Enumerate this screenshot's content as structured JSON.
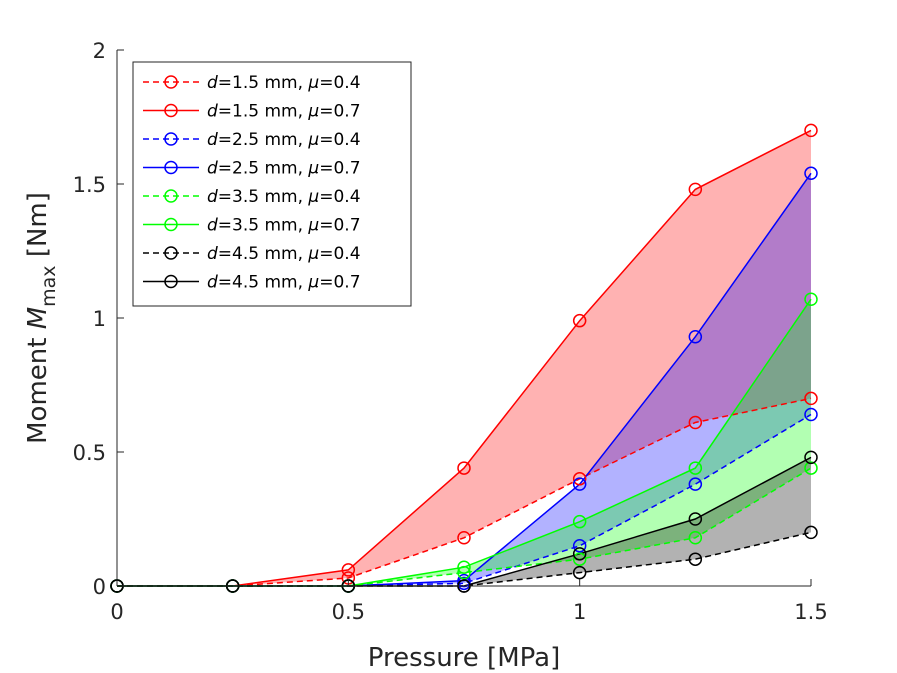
{
  "chart_data": {
    "type": "line",
    "title": "",
    "xlabel": "Pressure [MPa]",
    "ylabel_prefix": "Moment ",
    "ylabel_symbol": "M",
    "ylabel_subscript": "max",
    "ylabel_unit": "[Nm]",
    "x": [
      0,
      0.25,
      0.5,
      0.75,
      1,
      1.25,
      1.5
    ],
    "xlim": [
      0,
      1.5
    ],
    "ylim": [
      0,
      2
    ],
    "xticks": [
      0,
      0.5,
      1,
      1.5
    ],
    "xtick_labels": [
      "0",
      "0.5",
      "1",
      "1.5"
    ],
    "yticks": [
      0,
      0.5,
      1,
      1.5,
      2
    ],
    "ytick_labels": [
      "0",
      "0.5",
      "1",
      "1.5",
      "2"
    ],
    "grid": false,
    "legend_position": "top-left",
    "series": [
      {
        "d_label": "d",
        "rest_label": "=1.5 mm, ",
        "mu_label": "μ",
        "mu_value": "=0.4",
        "color": "#ff0000",
        "style": "dashed",
        "values": [
          0,
          0,
          0.03,
          0.18,
          0.4,
          0.61,
          0.7
        ]
      },
      {
        "d_label": "d",
        "rest_label": "=1.5 mm, ",
        "mu_label": "μ",
        "mu_value": "=0.7",
        "color": "#ff0000",
        "style": "solid",
        "values": [
          0,
          0,
          0.06,
          0.44,
          0.99,
          1.48,
          1.7
        ]
      },
      {
        "d_label": "d",
        "rest_label": "=2.5 mm, ",
        "mu_label": "μ",
        "mu_value": "=0.4",
        "color": "#0000ff",
        "style": "dashed",
        "values": [
          0,
          0,
          0,
          0.01,
          0.15,
          0.38,
          0.64
        ]
      },
      {
        "d_label": "d",
        "rest_label": "=2.5 mm, ",
        "mu_label": "μ",
        "mu_value": "=0.7",
        "color": "#0000ff",
        "style": "solid",
        "values": [
          0,
          0,
          0,
          0.02,
          0.38,
          0.93,
          1.54
        ]
      },
      {
        "d_label": "d",
        "rest_label": "=3.5 mm, ",
        "mu_label": "μ",
        "mu_value": "=0.4",
        "color": "#00ff00",
        "style": "dashed",
        "values": [
          0,
          0,
          0,
          0.05,
          0.1,
          0.18,
          0.44
        ]
      },
      {
        "d_label": "d",
        "rest_label": "=3.5 mm, ",
        "mu_label": "μ",
        "mu_value": "=0.7",
        "color": "#00ff00",
        "style": "solid",
        "values": [
          0,
          0,
          0,
          0.07,
          0.24,
          0.44,
          1.07
        ]
      },
      {
        "d_label": "d",
        "rest_label": "=4.5 mm, ",
        "mu_label": "μ",
        "mu_value": "=0.4",
        "color": "#000000",
        "style": "dashed",
        "values": [
          0,
          0,
          0,
          0,
          0.05,
          0.1,
          0.2
        ]
      },
      {
        "d_label": "d",
        "rest_label": "=4.5 mm, ",
        "mu_label": "μ",
        "mu_value": "=0.7",
        "color": "#000000",
        "style": "solid",
        "values": [
          0,
          0,
          0,
          0,
          0.12,
          0.25,
          0.48
        ]
      }
    ],
    "bands": [
      {
        "lower_series": 0,
        "upper_series": 1,
        "color": "#ff0000",
        "opacity": 0.3
      },
      {
        "lower_series": 2,
        "upper_series": 3,
        "color": "#0000ff",
        "opacity": 0.3
      },
      {
        "lower_series": 4,
        "upper_series": 5,
        "color": "#00ff00",
        "opacity": 0.3
      },
      {
        "lower_series": 6,
        "upper_series": 7,
        "color": "#000000",
        "opacity": 0.3
      }
    ]
  }
}
